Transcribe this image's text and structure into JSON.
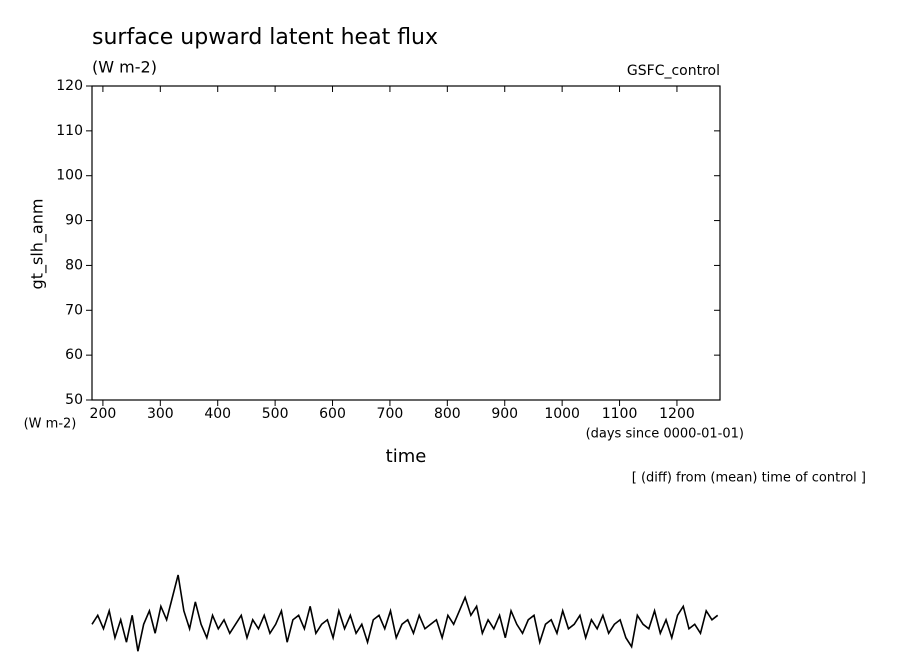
{
  "chart_data": {
    "type": "line",
    "title": "surface upward latent heat flux",
    "subtitle": "(W m-2)",
    "run_label": "GSFC_control",
    "ylabel": "gt_slh_anm",
    "yunit": "(W m-2)",
    "xlabel": "time",
    "xunit": "(days since 0000-01-01)",
    "annotation": "[ (diff) from (mean) time of control ]",
    "xlim": [
      181,
      1275
    ],
    "ylim": [
      50,
      120
    ],
    "xticks": [
      200,
      300,
      400,
      500,
      600,
      700,
      800,
      900,
      1000,
      1100,
      1200
    ],
    "yticks": [
      50,
      60,
      70,
      80,
      90,
      100,
      110,
      120
    ],
    "color": "#000000",
    "x": [
      181,
      191,
      201,
      211,
      221,
      231,
      241,
      251,
      261,
      271,
      281,
      291,
      301,
      311,
      321,
      331,
      341,
      351,
      361,
      371,
      381,
      391,
      401,
      411,
      421,
      431,
      441,
      451,
      461,
      471,
      481,
      491,
      501,
      511,
      521,
      531,
      541,
      551,
      561,
      571,
      581,
      591,
      601,
      611,
      621,
      631,
      641,
      651,
      661,
      671,
      681,
      691,
      701,
      711,
      721,
      731,
      741,
      751,
      761,
      771,
      781,
      791,
      801,
      811,
      821,
      831,
      841,
      851,
      861,
      871,
      881,
      891,
      901,
      911,
      921,
      931,
      941,
      951,
      961,
      971,
      981,
      991,
      1001,
      1011,
      1021,
      1031,
      1041,
      1051,
      1061,
      1071,
      1081,
      1091,
      1101,
      1111,
      1121,
      1131,
      1141,
      1151,
      1161,
      1171,
      1181,
      1191,
      1201,
      1211,
      1221,
      1231,
      1241,
      1251,
      1261,
      1271
    ],
    "values": [
      0,
      2,
      -1,
      3,
      -3,
      1,
      -4,
      2,
      -6,
      0,
      3,
      -2,
      4,
      1,
      6,
      11,
      3,
      -1,
      5,
      0,
      -3,
      2,
      -1,
      1,
      -2,
      0,
      2,
      -3,
      1,
      -1,
      2,
      -2,
      0,
      3,
      -4,
      1,
      2,
      -1,
      4,
      -2,
      0,
      1,
      -3,
      3,
      -1,
      2,
      -2,
      0,
      -4,
      1,
      2,
      -1,
      3,
      -3,
      0,
      1,
      -2,
      2,
      -1,
      0,
      1,
      -3,
      2,
      0,
      3,
      6,
      2,
      4,
      -2,
      1,
      -1,
      2,
      -3,
      3,
      0,
      -2,
      1,
      2,
      -4,
      0,
      1,
      -2,
      3,
      -1,
      0,
      2,
      -3,
      1,
      -1,
      2,
      -2,
      0,
      1,
      -3,
      -5,
      2,
      0,
      -1,
      3,
      -2,
      1,
      -3,
      2,
      4,
      -1,
      0,
      -2,
      3,
      1,
      2
    ]
  }
}
